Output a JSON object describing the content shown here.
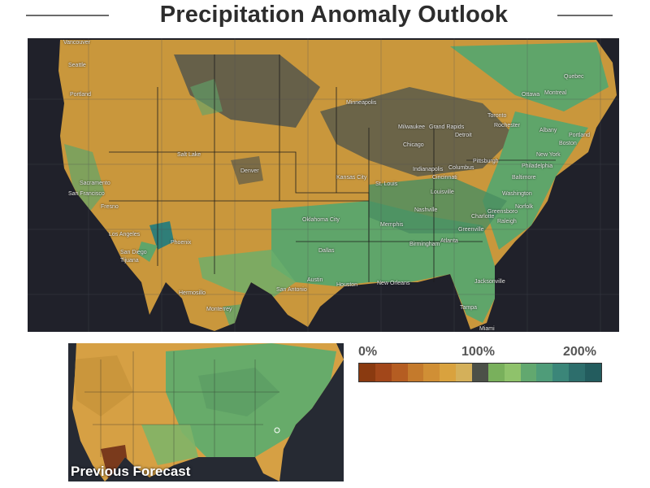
{
  "header": {
    "title": "Precipitation Anomaly Outlook"
  },
  "main_map": {
    "cities": [
      "Vancouver",
      "Seattle",
      "Portland",
      "Sacramento",
      "San Francisco",
      "Fresno",
      "Los Angeles",
      "San Diego",
      "Tijuana",
      "Phoenix",
      "Hermosillo",
      "Salt Lake",
      "Denver",
      "Minneapolis",
      "Milwaukee",
      "Grand Rapids",
      "Detroit",
      "Chicago",
      "Toronto",
      "Rochester",
      "Ottawa",
      "Montreal",
      "Quebec",
      "Albany",
      "Portland",
      "Boston",
      "New York",
      "Philadelphia",
      "Baltimore",
      "Washington",
      "Pittsburgh",
      "Columbus",
      "Cincinnati",
      "Indianapolis",
      "Kansas City",
      "St. Louis",
      "Louisville",
      "Nashville",
      "Oklahoma City",
      "Memphis",
      "Birmingham",
      "Atlanta",
      "Charlotte",
      "Greensboro",
      "Raleigh",
      "Norfolk",
      "Greenville",
      "Dallas",
      "Austin",
      "San Antonio",
      "Houston",
      "New Orleans",
      "Jacksonville",
      "Tampa",
      "Miami",
      "Monterrey"
    ]
  },
  "thumbnail": {
    "label": "Previous Forecast"
  },
  "legend": {
    "min_label": "0%",
    "mid_label": "100%",
    "max_label": "200%",
    "colors": [
      "#8a3a10",
      "#a2471a",
      "#b55d22",
      "#c47a2c",
      "#d08f35",
      "#d9a23e",
      "#d4b05a",
      "#4c5048",
      "#79b05c",
      "#8fc26b",
      "#62a86f",
      "#4f9c79",
      "#3b8679",
      "#2d6e6c",
      "#235c5e"
    ]
  },
  "colors": {
    "dry": "#c9973c",
    "near_normal": "#5b5a4a",
    "wet": "#5fa56a",
    "very_wet": "#2f7e78",
    "ocean": "#20212a"
  }
}
